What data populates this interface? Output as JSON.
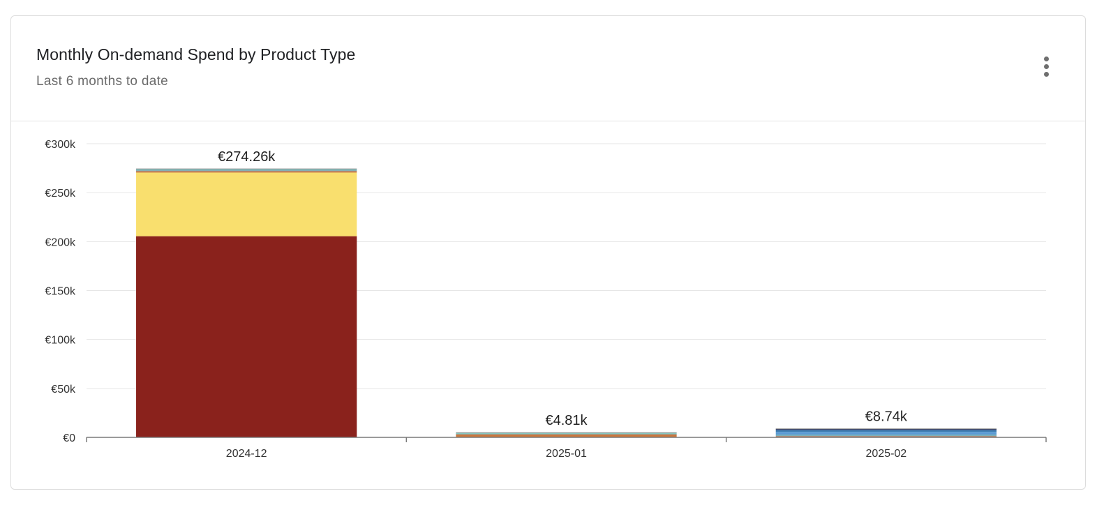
{
  "card": {
    "title": "Monthly On-demand Spend by Product Type",
    "subtitle": "Last 6 months to date",
    "menu_icon": "more-vert-icon"
  },
  "chart_data": {
    "type": "bar",
    "stacked": true,
    "categories": [
      "2024-12",
      "2025-01",
      "2025-02"
    ],
    "totals_labels": [
      "€274.26k",
      "€4.81k",
      "€8.74k"
    ],
    "yticks": [
      "€0",
      "€50k",
      "€100k",
      "€150k",
      "€200k",
      "€250k",
      "€300k"
    ],
    "ylim": [
      0,
      300000
    ],
    "grid": true,
    "legend": "none",
    "series": [
      {
        "color": "#8a221c",
        "values": [
          205500,
          0,
          0
        ]
      },
      {
        "color": "#f9df6e",
        "values": [
          65000,
          0,
          0
        ]
      },
      {
        "color": "#c9783f",
        "values": [
          1200,
          3100,
          900
        ]
      },
      {
        "color": "#9a7e72",
        "values": [
          700,
          0,
          600
        ]
      },
      {
        "color": "#6fa9b5",
        "values": [
          900,
          400,
          1400
        ]
      },
      {
        "color": "#84c7c0",
        "values": [
          960,
          1310,
          0
        ]
      },
      {
        "color": "#5b9bd5",
        "values": [
          0,
          0,
          2600
        ]
      },
      {
        "color": "#3f7fb3",
        "values": [
          0,
          0,
          1900
        ]
      },
      {
        "color": "#2e3a66",
        "values": [
          0,
          0,
          1340
        ]
      }
    ]
  }
}
